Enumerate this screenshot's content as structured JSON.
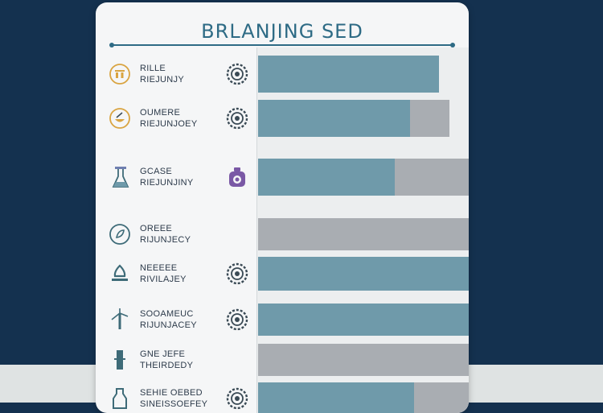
{
  "chart_data": {
    "type": "bar",
    "orientation": "horizontal",
    "stacked": true,
    "title": "BRLANJING SED",
    "categories": [
      [
        "RILLE",
        "RIEJUNJY"
      ],
      [
        "OUMERE",
        "RIEJUNJOEY"
      ],
      [
        "GCASE",
        "RIEJUNJINY"
      ],
      [
        "OREEE",
        "RIJUNJECY"
      ],
      [
        "NEEEEE",
        "RIVILAJEY"
      ],
      [
        "SOOAMEUC",
        "RIJUNJACEY"
      ],
      [
        "GNE JEFE",
        "THEIRDEDY"
      ],
      [
        "SEHIE OEBED",
        "SINEISSOEFEY"
      ]
    ],
    "series": [
      {
        "values": [
          86,
          72,
          65,
          0,
          100,
          100,
          0,
          74
        ],
        "color": "#6f9aaa"
      },
      {
        "values": [
          0,
          19,
          35,
          100,
          0,
          0,
          100,
          26
        ],
        "color": "#a9adb2"
      }
    ],
    "xlim": [
      0,
      100
    ],
    "legend": "none",
    "grid": false
  },
  "rows": [
    {
      "left_icon": "padlock-icon",
      "left_color": "#d9a441",
      "mid_icon": "gear-badge-icon",
      "mid_color": "#3a4a55"
    },
    {
      "left_icon": "food-bowl-icon",
      "left_color": "#d9a441",
      "mid_icon": "gear-badge-icon",
      "mid_color": "#3a4a55"
    },
    {
      "left_icon": "flask-icon",
      "left_color": "#6f7fb0",
      "mid_icon": "jar-icon",
      "mid_color": "#7a58a5"
    },
    {
      "left_icon": "leaf-circle-icon",
      "left_color": "#3e6b78",
      "mid_icon": "",
      "mid_color": ""
    },
    {
      "left_icon": "flame-icon",
      "left_color": "#3e6b78",
      "mid_icon": "gear-badge-icon",
      "mid_color": "#3a4a55"
    },
    {
      "left_icon": "windmill-icon",
      "left_color": "#3e6b78",
      "mid_icon": "gear-badge-icon",
      "mid_color": "#3a4a55"
    },
    {
      "left_icon": "tower-icon",
      "left_color": "#3e6b78",
      "mid_icon": "",
      "mid_color": ""
    },
    {
      "left_icon": "bottle-icon",
      "left_color": "#3e6b78",
      "mid_icon": "gear-badge-icon",
      "mid_color": "#3a4a55"
    }
  ]
}
